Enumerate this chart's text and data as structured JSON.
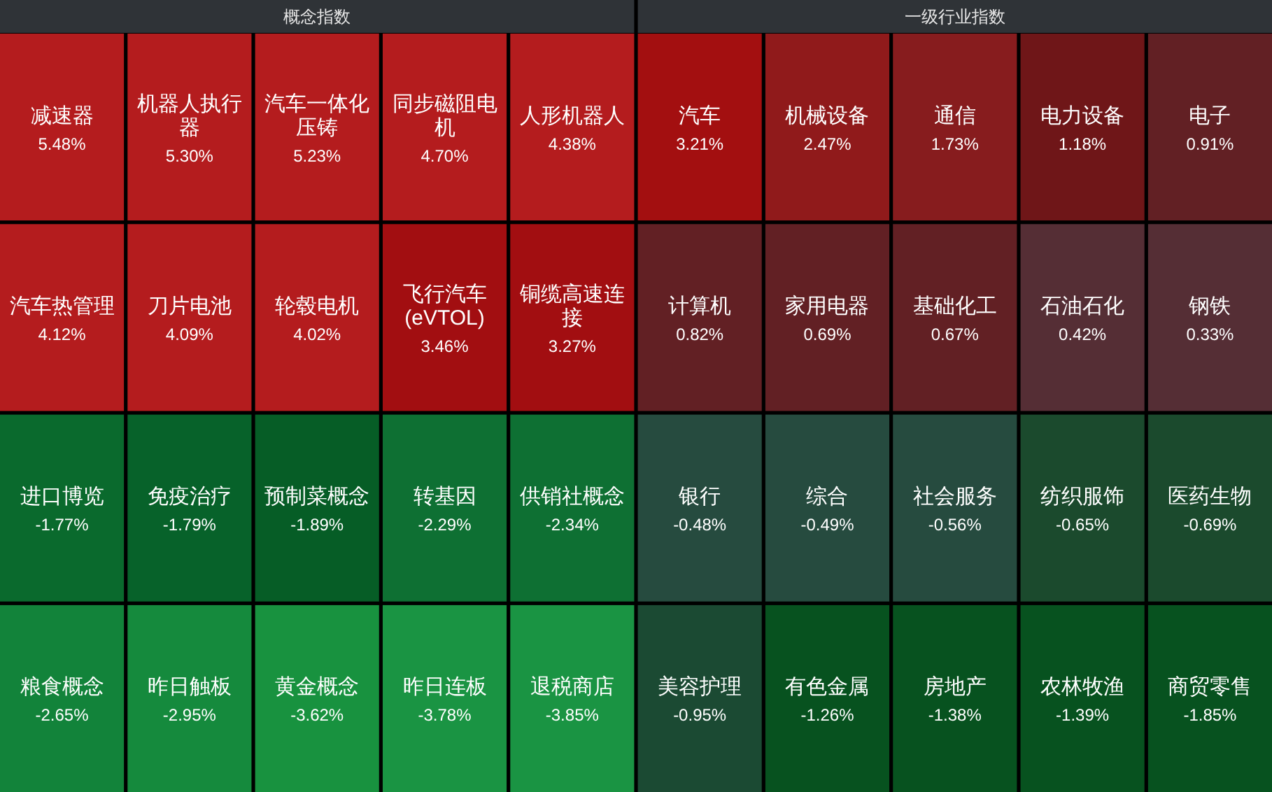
{
  "chart_data": [
    {
      "type": "other",
      "title": "概念指数",
      "categories": [
        "减速器",
        "机器人执行器",
        "汽车一体化压铸",
        "同步磁阻电机",
        "人形机器人",
        "汽车热管理",
        "刀片电池",
        "轮毂电机",
        "飞行汽车(eVTOL)",
        "铜缆高速连接",
        "进口博览",
        "免疫治疗",
        "预制菜概念",
        "转基因",
        "供销社概念",
        "粮食概念",
        "昨日触板",
        "黄金概念",
        "昨日连板",
        "退税商店"
      ],
      "values": [
        5.48,
        5.3,
        5.23,
        4.7,
        4.38,
        4.12,
        4.09,
        4.02,
        3.46,
        3.27,
        -1.77,
        -1.79,
        -1.89,
        -2.29,
        -2.34,
        -2.65,
        -2.95,
        -3.62,
        -3.78,
        -3.85
      ],
      "value_labels": [
        "5.48%",
        "5.30%",
        "5.23%",
        "4.70%",
        "4.38%",
        "4.12%",
        "4.09%",
        "4.02%",
        "3.46%",
        "3.27%",
        "-1.77%",
        "-1.79%",
        "-1.89%",
        "-2.29%",
        "-2.34%",
        "-2.65%",
        "-2.95%",
        "-3.62%",
        "-3.78%",
        "-3.85%"
      ],
      "colors": [
        "#b41c1e",
        "#b41c1e",
        "#b41c1e",
        "#b41c1e",
        "#b41c1e",
        "#b41c1e",
        "#b41c1e",
        "#b41c1e",
        "#a20e11",
        "#a20e11",
        "#0a6a2d",
        "#07622a",
        "#065d26",
        "#0e7033",
        "#0e7033",
        "#12833a",
        "#158a3d",
        "#18923f",
        "#1a9443",
        "#1a9443"
      ]
    },
    {
      "type": "other",
      "title": "一级行业指数",
      "categories": [
        "汽车",
        "机械设备",
        "通信",
        "电力设备",
        "电子",
        "计算机",
        "家用电器",
        "基础化工",
        "石油石化",
        "钢铁",
        "银行",
        "综合",
        "社会服务",
        "纺织服饰",
        "医药生物",
        "美容护理",
        "有色金属",
        "房地产",
        "农林牧渔",
        "商贸零售"
      ],
      "values": [
        3.21,
        2.47,
        1.73,
        1.18,
        0.91,
        0.82,
        0.69,
        0.67,
        0.42,
        0.33,
        -0.48,
        -0.49,
        -0.56,
        -0.65,
        -0.69,
        -0.95,
        -1.26,
        -1.38,
        -1.39,
        -1.85
      ],
      "value_labels": [
        "3.21%",
        "2.47%",
        "1.73%",
        "1.18%",
        "0.91%",
        "0.82%",
        "0.69%",
        "0.67%",
        "0.42%",
        "0.33%",
        "-0.48%",
        "-0.49%",
        "-0.56%",
        "-0.65%",
        "-0.69%",
        "-0.95%",
        "-1.26%",
        "-1.38%",
        "-1.39%",
        "-1.85%"
      ],
      "colors": [
        "#a30f10",
        "#901a1b",
        "#871c1e",
        "#6f1618",
        "#622024",
        "#622024",
        "#622024",
        "#622024",
        "#552e35",
        "#552e35",
        "#264b3f",
        "#264b3f",
        "#264b3f",
        "#1b4a2d",
        "#1b4a2d",
        "#1b4a33",
        "#07521f",
        "#07521f",
        "#07521f",
        "#07521f"
      ]
    }
  ]
}
